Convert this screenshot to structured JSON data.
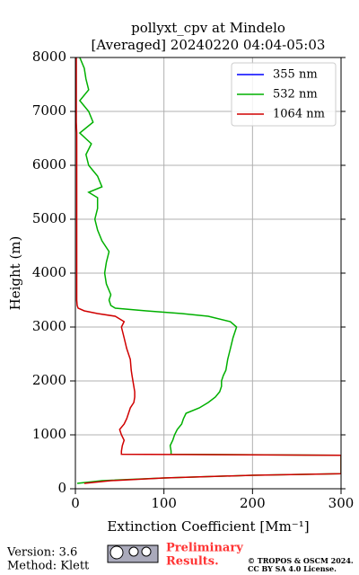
{
  "chart_data": {
    "type": "line",
    "title": "pollyxt_cpv at Mindelo",
    "subtitle": "[Averaged] 20240220 04:04-05:03",
    "xlabel": "Extinction Coefficient [Mm⁻¹]",
    "ylabel": "Height (m)",
    "xlim": [
      0,
      300
    ],
    "xticks": [
      0,
      100,
      200,
      300
    ],
    "ylim": [
      0,
      8000
    ],
    "yticks": [
      0,
      1000,
      2000,
      3000,
      4000,
      5000,
      6000,
      7000,
      8000
    ],
    "grid": true,
    "legend": "upper right",
    "y": [
      100,
      150,
      200,
      250,
      280,
      620,
      640,
      700,
      800,
      900,
      1000,
      1100,
      1200,
      1300,
      1400,
      1500,
      1600,
      1700,
      1800,
      1900,
      2000,
      2100,
      2200,
      2400,
      2600,
      2800,
      3000,
      3100,
      3200,
      3250,
      3300,
      3350,
      3400,
      3500,
      3600,
      3800,
      4000,
      4200,
      4400,
      4600,
      4800,
      5000,
      5200,
      5400,
      5500,
      5600,
      5800,
      6000,
      6200,
      6400,
      6600,
      6800,
      7000,
      7200,
      7400,
      7600,
      7800,
      8000
    ],
    "series": [
      {
        "name": "355 nm",
        "color": "#0000ff",
        "values": [
          null,
          null,
          null,
          null,
          null,
          null,
          null,
          null,
          null,
          null,
          null,
          null,
          null,
          null,
          null,
          null,
          null,
          null,
          null,
          null,
          null,
          null,
          null,
          null,
          null,
          null,
          null,
          null,
          null,
          null,
          null,
          null,
          null,
          null,
          null,
          null,
          null,
          null,
          null,
          null,
          null,
          null,
          null,
          null,
          null,
          null,
          null,
          null,
          null,
          null,
          null,
          null,
          null,
          null,
          null,
          null,
          null,
          null
        ]
      },
      {
        "name": "532 nm",
        "color": "#00b000",
        "values": [
          2,
          30,
          100,
          200,
          300,
          300,
          108,
          108,
          107,
          110,
          112,
          115,
          120,
          122,
          125,
          140,
          150,
          158,
          163,
          165,
          165,
          167,
          170,
          172,
          175,
          178,
          182,
          175,
          150,
          120,
          80,
          45,
          40,
          38,
          40,
          35,
          33,
          35,
          38,
          30,
          25,
          22,
          25,
          25,
          15,
          30,
          25,
          15,
          12,
          18,
          5,
          20,
          15,
          5,
          15,
          12,
          10,
          5
        ]
      },
      {
        "name": "1064 nm",
        "color": "#d00000",
        "values": [
          10,
          40,
          100,
          200,
          300,
          300,
          52,
          52,
          53,
          55,
          52,
          50,
          55,
          58,
          60,
          62,
          66,
          67,
          67,
          66,
          65,
          64,
          63,
          62,
          58,
          55,
          52,
          55,
          45,
          25,
          10,
          3,
          2,
          1.5,
          1.5,
          1.5,
          1.5,
          1.5,
          1.5,
          1.5,
          1.5,
          1.5,
          1.5,
          1.5,
          1.5,
          1.5,
          1.5,
          1.5,
          1.5,
          1.5,
          1.5,
          1,
          1,
          1,
          1,
          1,
          1,
          1
        ]
      }
    ]
  },
  "footer": {
    "version": "Version: 3.6",
    "method": "Method: Klett",
    "preliminary": "Preliminary",
    "results": "Results.",
    "copyright": "© TROPOS & OSCM 2024.",
    "license": "CC BY SA 4.0 License."
  }
}
